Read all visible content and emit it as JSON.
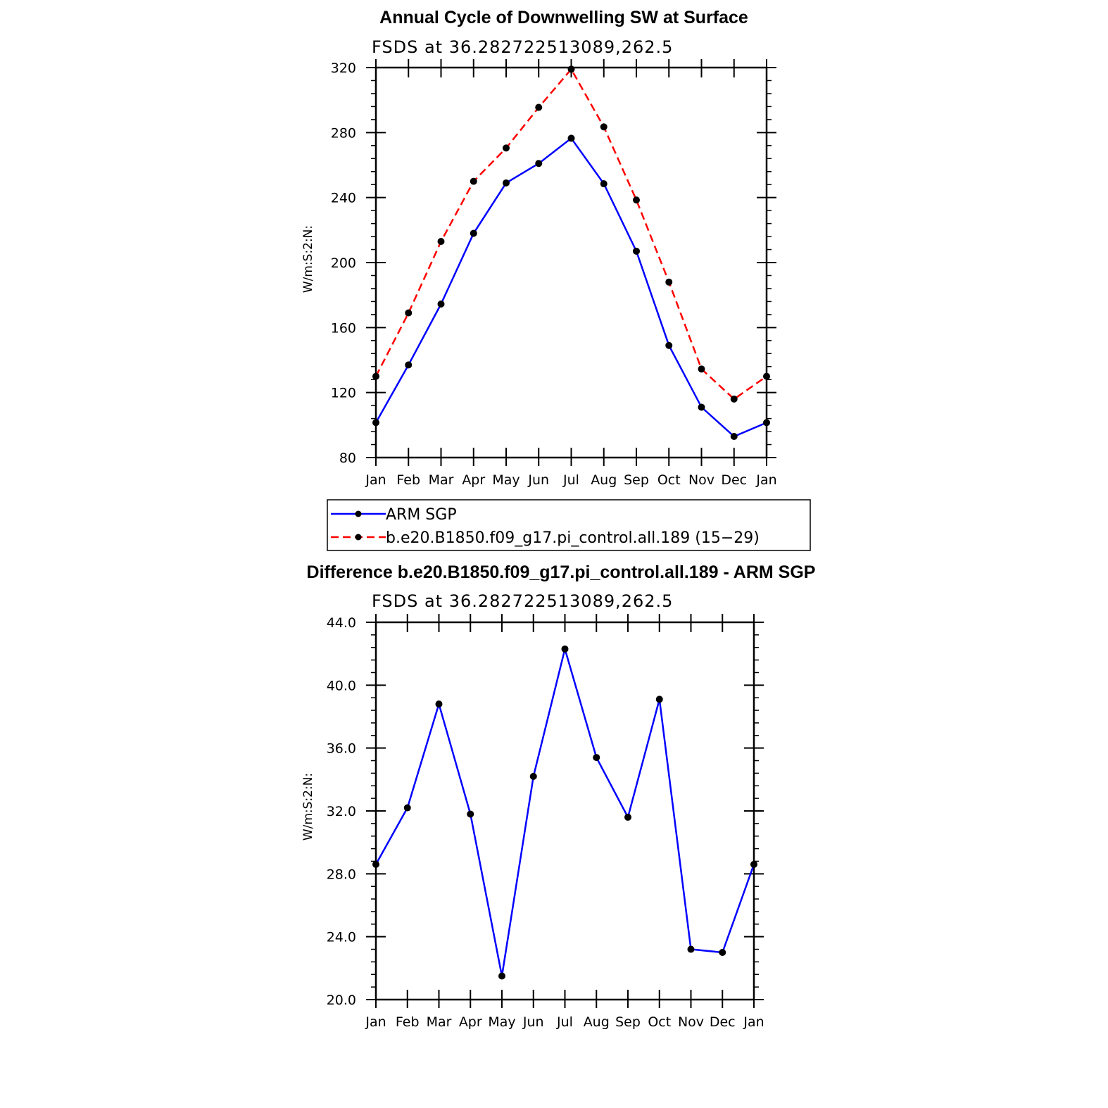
{
  "chart_data": [
    {
      "type": "line",
      "title": "Annual Cycle of Downwelling SW at Surface",
      "subtitle": "FSDS at 36.282722513089,262.5",
      "xlabel": "",
      "ylabel": "W/m:S:2:N:",
      "categories": [
        "Jan",
        "Feb",
        "Mar",
        "Apr",
        "May",
        "Jun",
        "Jul",
        "Aug",
        "Sep",
        "Oct",
        "Nov",
        "Dec",
        "Jan"
      ],
      "ylim": [
        80,
        320
      ],
      "yticks": [
        "80",
        "120",
        "160",
        "200",
        "240",
        "280",
        "320"
      ],
      "grid": false,
      "legend_position": "below",
      "series": [
        {
          "name": "ARM SGP",
          "color": "#0000ff",
          "dash": "solid",
          "values": [
            101.5,
            137,
            174.5,
            218,
            249,
            261,
            276.5,
            248.5,
            207,
            149,
            111,
            93,
            101.5
          ]
        },
        {
          "name": "b.e20.B1850.f09_g17.pi_control.all.189 (15−29)",
          "color": "#ff0000",
          "dash": "dashed",
          "values": [
            130,
            169,
            213,
            250,
            270.5,
            295.5,
            319,
            283.5,
            238.5,
            188,
            134.5,
            116,
            130
          ]
        }
      ]
    },
    {
      "type": "line",
      "title": "Difference b.e20.B1850.f09_g17.pi_control.all.189 - ARM SGP",
      "subtitle": "FSDS at 36.282722513089,262.5",
      "xlabel": "",
      "ylabel": "W/m:S:2:N:",
      "categories": [
        "Jan",
        "Feb",
        "Mar",
        "Apr",
        "May",
        "Jun",
        "Jul",
        "Aug",
        "Sep",
        "Oct",
        "Nov",
        "Dec",
        "Jan"
      ],
      "ylim": [
        20,
        44
      ],
      "yticks": [
        "20.0",
        "24.0",
        "28.0",
        "32.0",
        "36.0",
        "40.0",
        "44.0"
      ],
      "grid": false,
      "series": [
        {
          "color": "#0000ff",
          "dash": "solid",
          "values": [
            28.6,
            32.2,
            38.8,
            31.8,
            21.5,
            34.2,
            42.3,
            35.4,
            31.6,
            39.1,
            23.2,
            23.0,
            28.6
          ]
        }
      ]
    }
  ]
}
